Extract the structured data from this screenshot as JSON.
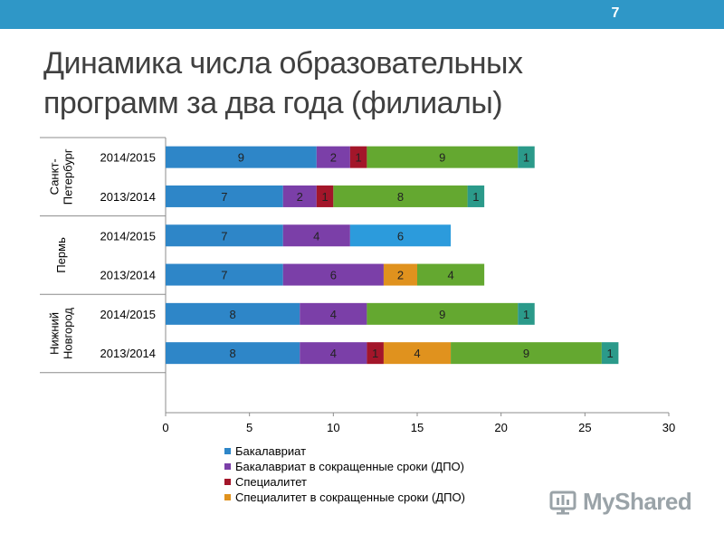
{
  "page_number": "7",
  "title_lines": [
    "Динамика числа образовательных",
    "программ за два года (филиалы)"
  ],
  "watermark": "MyShared",
  "chart_data": {
    "type": "bar",
    "orientation": "horizontal",
    "stacked": true,
    "xlim": [
      0,
      30
    ],
    "x_ticks": [
      0,
      5,
      10,
      15,
      20,
      25,
      30
    ],
    "legend_position": "bottom",
    "groups": [
      {
        "name": "Санкт-Петербург",
        "label_lines": [
          "Санкт-",
          "Петербург"
        ],
        "rows": [
          0,
          1
        ]
      },
      {
        "name": "Пермь",
        "label_lines": [
          "Пермь"
        ],
        "rows": [
          2,
          3
        ]
      },
      {
        "name": "Нижний Новгород",
        "label_lines": [
          "Нижний",
          "Новгород"
        ],
        "rows": [
          4,
          5
        ]
      }
    ],
    "categories": [
      "2014/2015",
      "2013/2014",
      "2014/2015",
      "2013/2014",
      "2014/2015",
      "2013/2014"
    ],
    "series": [
      {
        "name": "Бакалавриат",
        "color": "#2e86c8",
        "values": [
          9,
          7,
          7,
          7,
          8,
          8
        ]
      },
      {
        "name": "Бакалавриат в сокращенные сроки (ДПО)",
        "color": "#7b3fa8",
        "values": [
          2,
          2,
          4,
          6,
          4,
          4
        ]
      },
      {
        "name": "Специалитет",
        "color": "#a3162a",
        "values": [
          1,
          1,
          0,
          0,
          0,
          1
        ]
      },
      {
        "name": "Специалитет в сокращенные сроки (ДПО)",
        "color": "#e0921e",
        "values": [
          0,
          0,
          0,
          2,
          0,
          4
        ]
      },
      {
        "name": "",
        "color": "#2c9bdc",
        "values": [
          0,
          0,
          6,
          0,
          0,
          0
        ]
      },
      {
        "name": "",
        "color": "#64a830",
        "values": [
          9,
          8,
          0,
          4,
          9,
          9
        ]
      },
      {
        "name": "",
        "color": "#2b9a8a",
        "values": [
          1,
          1,
          0,
          0,
          1,
          1
        ]
      }
    ],
    "legend_entries": [
      0,
      1,
      2,
      3
    ]
  }
}
